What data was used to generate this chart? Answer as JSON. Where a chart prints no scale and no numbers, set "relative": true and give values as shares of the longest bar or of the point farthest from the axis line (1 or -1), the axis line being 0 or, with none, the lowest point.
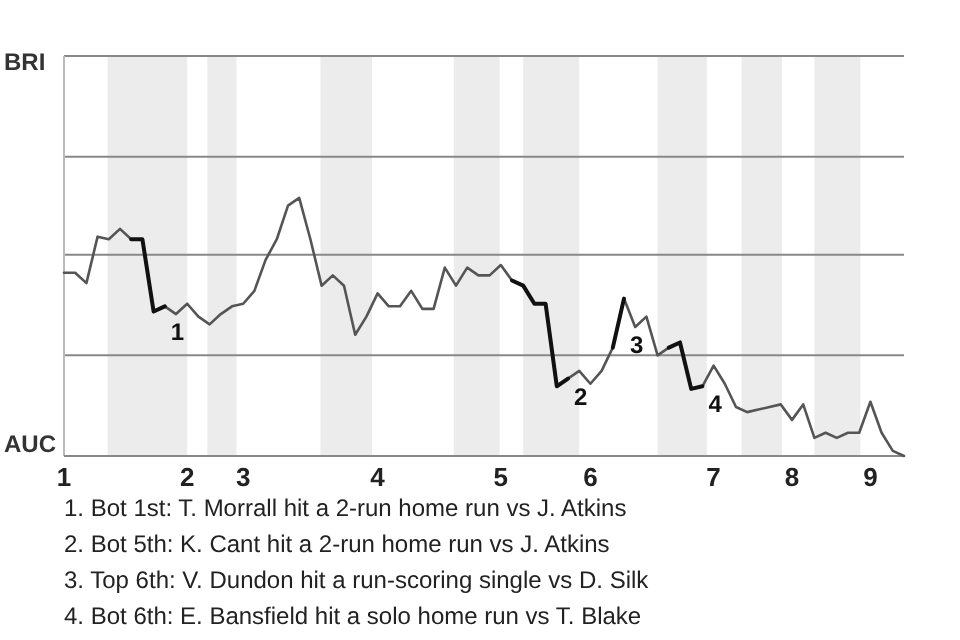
{
  "chart_data": {
    "type": "line",
    "relative": true,
    "legend": false,
    "marker": "none",
    "line_style": "solid",
    "categories": [
      "1",
      null,
      null,
      null,
      null,
      null,
      null,
      null,
      null,
      null,
      null,
      "2",
      null,
      null,
      null,
      null,
      "3",
      null,
      null,
      null,
      null,
      null,
      null,
      null,
      null,
      null,
      null,
      null,
      "4",
      null,
      null,
      null,
      null,
      null,
      null,
      null,
      null,
      null,
      null,
      "5",
      null,
      null,
      null,
      null,
      null,
      null,
      null,
      "6",
      null,
      null,
      null,
      null,
      null,
      null,
      null,
      null,
      null,
      null,
      "7",
      null,
      null,
      null,
      null,
      null,
      null,
      "8",
      null,
      null,
      null,
      null,
      null,
      null,
      "9",
      null,
      null,
      null
    ],
    "ref_lines": [
      {
        "axis": "y",
        "value": 0.39,
        "color": "#888888"
      },
      {
        "axis": "y",
        "value": 0.78,
        "color": "#888888"
      },
      {
        "axis": "y",
        "value": 1.16,
        "color": "#888888"
      },
      {
        "axis": "y",
        "value": 1.55,
        "color": "#888888"
      }
    ],
    "series": [
      {
        "color": "#555555",
        "values": [
          0.71,
          0.71,
          0.67,
          0.85,
          0.84,
          0.88,
          0.84,
          0.84,
          0.56,
          0.58,
          0.55,
          0.59,
          0.54,
          0.51,
          0.55,
          0.58,
          0.59,
          0.64,
          0.76,
          0.84,
          0.97,
          1,
          0.84,
          0.66,
          0.7,
          0.66,
          0.47,
          0.54,
          0.63,
          0.58,
          0.58,
          0.64,
          0.57,
          0.57,
          0.73,
          0.66,
          0.73,
          0.7,
          0.7,
          0.74,
          0.68,
          0.66,
          0.59,
          0.59,
          0.27,
          0.3,
          0.33,
          0.28,
          0.33,
          0.42,
          0.61,
          0.5,
          0.54,
          0.39,
          0.42,
          0.44,
          0.26,
          0.27,
          0.35,
          0.28,
          0.19,
          0.17,
          0.18,
          0.19,
          0.2,
          0.14,
          0.2,
          0.07,
          0.09,
          0.07,
          0.09,
          0.09,
          0.21,
          0.09,
          0.02,
          0
        ]
      },
      {
        "name": "1",
        "color": "#111111",
        "values": [
          null,
          null,
          null,
          null,
          null,
          null,
          0.84,
          0.84,
          0.56,
          0.58,
          null,
          null,
          null,
          null,
          null,
          null,
          null,
          null,
          null,
          null,
          null,
          null,
          null,
          null,
          null,
          null,
          null,
          null,
          null,
          null,
          null,
          null,
          null,
          null,
          null,
          null,
          null,
          null,
          null,
          null,
          null,
          null,
          null,
          null,
          null,
          null,
          null,
          null,
          null,
          null,
          null,
          null,
          null,
          null,
          null,
          null,
          null,
          null,
          null,
          null,
          null,
          null,
          null,
          null,
          null,
          null,
          null,
          null,
          null,
          null,
          null,
          null,
          null,
          null,
          null,
          null
        ]
      },
      {
        "name": "2",
        "color": "#111111",
        "values": [
          null,
          null,
          null,
          null,
          null,
          null,
          null,
          null,
          null,
          null,
          null,
          null,
          null,
          null,
          null,
          null,
          null,
          null,
          null,
          null,
          null,
          null,
          null,
          null,
          null,
          null,
          null,
          null,
          null,
          null,
          null,
          null,
          null,
          null,
          null,
          null,
          null,
          null,
          null,
          null,
          0.68,
          0.66,
          0.59,
          0.59,
          0.27,
          0.3,
          null,
          null,
          null,
          null,
          null,
          null,
          null,
          null,
          null,
          null,
          null,
          null,
          null,
          null,
          null,
          null,
          null,
          null,
          null,
          null,
          null,
          null,
          null,
          null,
          null,
          null,
          null,
          null,
          null,
          null
        ]
      },
      {
        "name": "3",
        "color": "#111111",
        "values": [
          null,
          null,
          null,
          null,
          null,
          null,
          null,
          null,
          null,
          null,
          null,
          null,
          null,
          null,
          null,
          null,
          null,
          null,
          null,
          null,
          null,
          null,
          null,
          null,
          null,
          null,
          null,
          null,
          null,
          null,
          null,
          null,
          null,
          null,
          null,
          null,
          null,
          null,
          null,
          null,
          null,
          null,
          null,
          null,
          null,
          null,
          null,
          null,
          null,
          0.42,
          0.61,
          null,
          null,
          null,
          null,
          null,
          null,
          null,
          null,
          null,
          null,
          null,
          null,
          null,
          null,
          null,
          null,
          null,
          null,
          null,
          null,
          null,
          null,
          null,
          null,
          null
        ]
      },
      {
        "name": "4",
        "color": "#111111",
        "values": [
          null,
          null,
          null,
          null,
          null,
          null,
          null,
          null,
          null,
          null,
          null,
          null,
          null,
          null,
          null,
          null,
          null,
          null,
          null,
          null,
          null,
          null,
          null,
          null,
          null,
          null,
          null,
          null,
          null,
          null,
          null,
          null,
          null,
          null,
          null,
          null,
          null,
          null,
          null,
          null,
          null,
          null,
          null,
          null,
          null,
          null,
          null,
          null,
          null,
          null,
          null,
          null,
          null,
          null,
          0.42,
          0.44,
          0.26,
          0.27,
          null,
          null,
          null,
          null,
          null,
          null,
          null,
          null,
          null,
          null,
          null,
          null,
          null,
          null,
          null,
          null,
          null,
          null
        ]
      }
    ],
    "annotations": [
      "BRI",
      "AUC",
      "1. Bot 1st: T. Morrall hit a 2-run home run vs J. Atkins",
      "2. Bot 5th: K. Cant hit a 2-run home run vs J. Atkins",
      "3. Top 6th: V. Dundon hit a run-scoring single vs D. Silk",
      "4. Bot 6th: E. Bansfield hit a solo home run vs T. Blake"
    ]
  }
}
